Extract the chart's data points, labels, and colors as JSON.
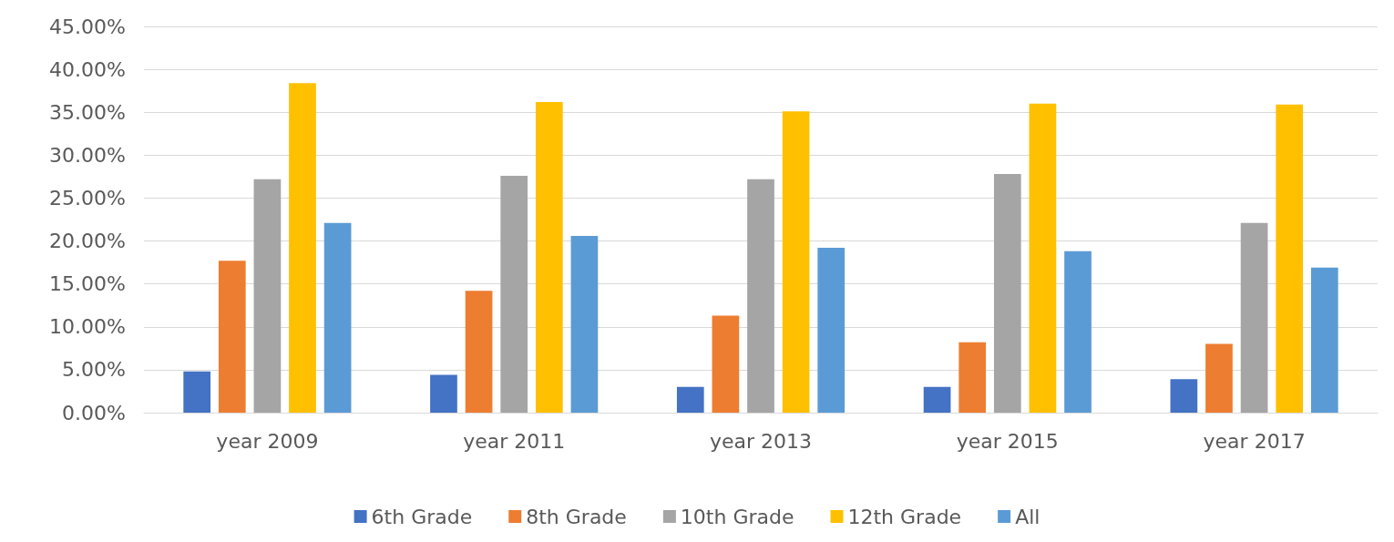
{
  "chart_data": {
    "type": "bar",
    "categories": [
      "year 2009",
      "year 2011",
      "year 2013",
      "year 2015",
      "year 2017"
    ],
    "series": [
      {
        "name": "6th Grade",
        "color": "#4472c4",
        "values": [
          4.8,
          4.4,
          3.0,
          3.0,
          3.9
        ]
      },
      {
        "name": "8th Grade",
        "color": "#ed7d31",
        "values": [
          17.7,
          14.2,
          11.3,
          8.2,
          8.0
        ]
      },
      {
        "name": "10th Grade",
        "color": "#a5a5a5",
        "values": [
          27.2,
          27.6,
          27.2,
          27.8,
          22.1
        ]
      },
      {
        "name": "12th Grade",
        "color": "#ffc000",
        "values": [
          38.4,
          36.2,
          35.1,
          36.0,
          35.9
        ]
      },
      {
        "name": "All",
        "color": "#5b9bd5",
        "values": [
          22.1,
          20.6,
          19.2,
          18.8,
          16.9
        ]
      }
    ],
    "ylim": [
      0,
      45
    ],
    "yticks": [
      {
        "value": 0,
        "label": "0.00%"
      },
      {
        "value": 5,
        "label": "5.00%"
      },
      {
        "value": 10,
        "label": "10.00%"
      },
      {
        "value": 15,
        "label": "15.00%"
      },
      {
        "value": 20,
        "label": "20.00%"
      },
      {
        "value": 25,
        "label": "25.00%"
      },
      {
        "value": 30,
        "label": "30.00%"
      },
      {
        "value": 35,
        "label": "35.00%"
      },
      {
        "value": 40,
        "label": "40.00%"
      },
      {
        "value": 45,
        "label": "45.00%"
      }
    ],
    "grid": "y",
    "legend": "bottom"
  }
}
